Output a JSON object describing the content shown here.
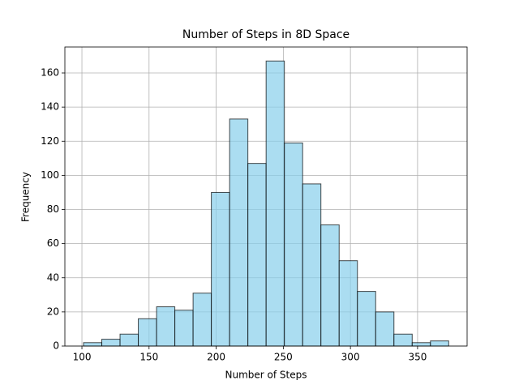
{
  "chart_data": {
    "type": "histogram",
    "title": "Number of Steps in 8D Space",
    "x_label": "Number of Steps",
    "y_label": "Frequency",
    "bins": [
      101.2,
      114.8,
      128.4,
      142.0,
      155.6,
      169.2,
      182.8,
      196.4,
      210.0,
      223.6,
      237.2,
      250.8,
      264.4,
      278.0,
      291.6,
      305.2,
      318.8,
      332.4,
      346.0,
      359.6,
      373.2
    ],
    "values": [
      2,
      4,
      7,
      16,
      23,
      21,
      31,
      90,
      133,
      107,
      167,
      119,
      95,
      71,
      50,
      32,
      20,
      7,
      2,
      3
    ],
    "color": "#87ceeb",
    "edge_color": "#000000",
    "opacity": 0.7,
    "xlim": [
      87.3,
      386.9
    ],
    "ylim": [
      0,
      175.2
    ],
    "xticks": [
      100,
      150,
      200,
      250,
      300,
      350
    ],
    "yticks": [
      0,
      20,
      40,
      60,
      80,
      100,
      120,
      140,
      160
    ],
    "grid": true
  }
}
